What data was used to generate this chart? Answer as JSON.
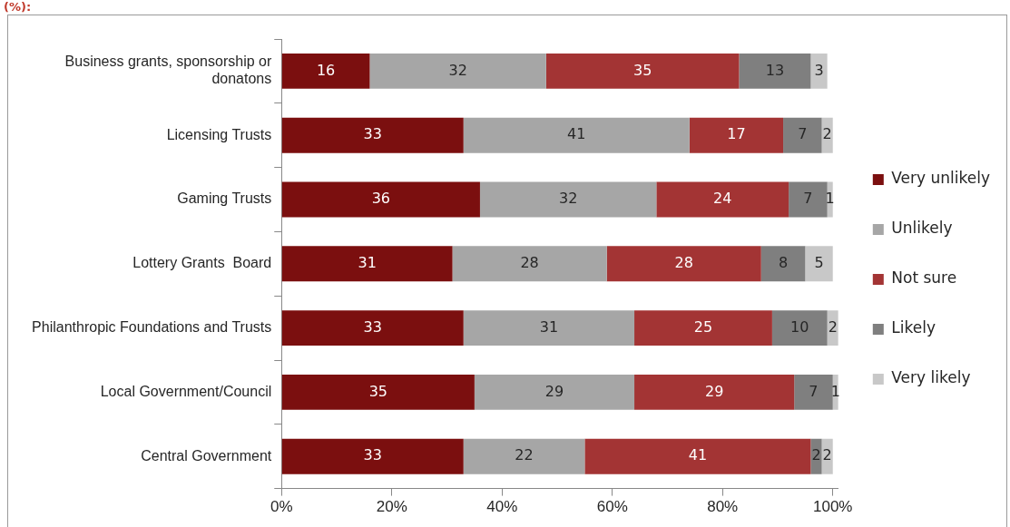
{
  "chart_data": {
    "type": "bar",
    "title": "(%):",
    "orientation": "horizontal",
    "stacked": true,
    "categories": [
      "Business grants, sponsorship or donatons",
      "Licensing Trusts",
      "Gaming Trusts",
      "Lottery Grants  Board",
      "Philanthropic Foundations and Trusts",
      "Local Government/Council",
      "Central Government"
    ],
    "series": [
      {
        "name": "Very unlikely",
        "color": "#7b0f0f",
        "values": [
          16,
          33,
          36,
          31,
          33,
          35,
          33
        ]
      },
      {
        "name": "Unlikely",
        "color": "#a6a6a6",
        "values": [
          32,
          41,
          32,
          28,
          31,
          29,
          22
        ]
      },
      {
        "name": "Not sure",
        "color": "#a33434",
        "values": [
          35,
          17,
          24,
          28,
          25,
          29,
          41
        ]
      },
      {
        "name": "Likely",
        "color": "#7f7f7f",
        "values": [
          13,
          7,
          7,
          8,
          10,
          7,
          2
        ]
      },
      {
        "name": "Very likely",
        "color": "#c8c8c8",
        "values": [
          3,
          2,
          1,
          5,
          2,
          1,
          2
        ]
      }
    ],
    "xlim": [
      0,
      101
    ],
    "xticks": [
      {
        "value": 0,
        "label": "0%"
      },
      {
        "value": 20,
        "label": "20%"
      },
      {
        "value": 40,
        "label": "40%"
      },
      {
        "value": 60,
        "label": "60%"
      },
      {
        "value": 80,
        "label": "80%"
      },
      {
        "value": 100,
        "label": "100%"
      }
    ],
    "data_labels": true,
    "grid": false,
    "legend": "right"
  }
}
